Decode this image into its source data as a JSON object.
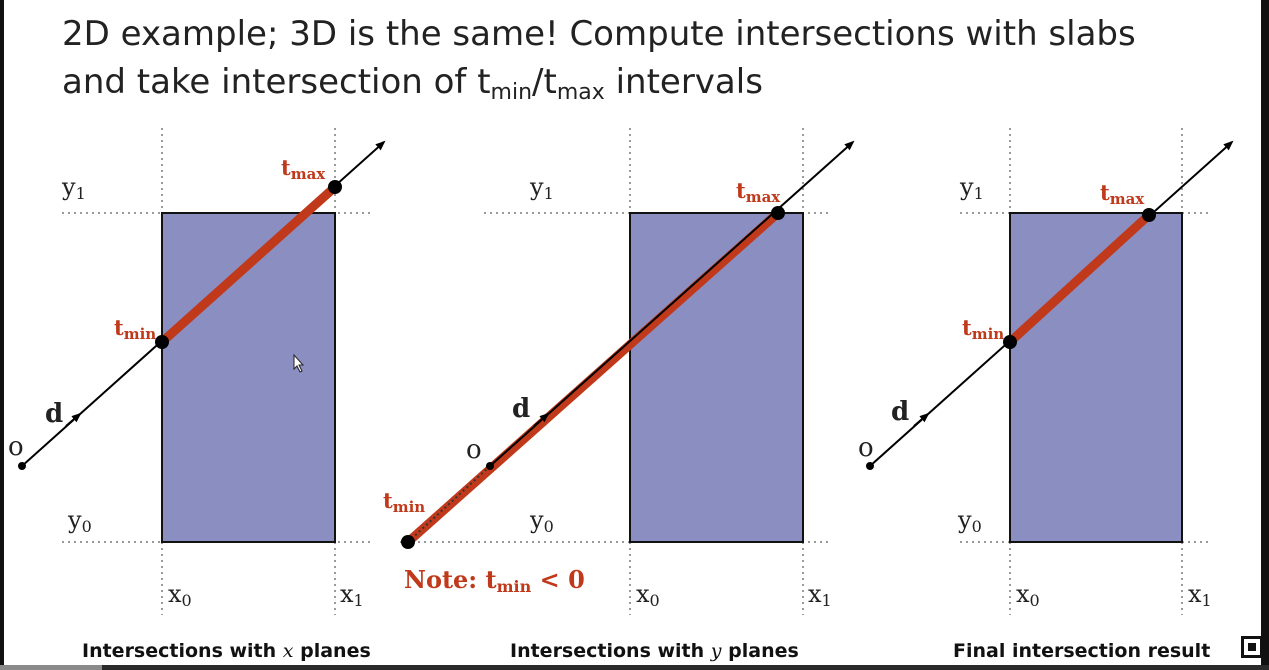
{
  "title": {
    "line1": "2D example; 3D is the same!  Compute intersections with slabs",
    "line2_before": "and take intersection of t",
    "sub_min": "min",
    "slash": "/t",
    "sub_max": "max",
    "line2_after": " intervals"
  },
  "labels": {
    "o": "o",
    "d": "d",
    "x0": "x",
    "x1": "x",
    "y0": "y",
    "y1": "y",
    "sub0": "0",
    "sub1": "1",
    "t": "t",
    "min": "min",
    "max": "max"
  },
  "note": {
    "prefix": "Note:  t",
    "sub": "min",
    "suffix": " < 0"
  },
  "captions": {
    "panel1_before": "Intersections with ",
    "panel1_var": "x",
    "panel1_after": " planes",
    "panel2_before": "Intersections with ",
    "panel2_var": "y",
    "panel2_after": " planes",
    "panel3": "Final intersection result"
  },
  "colors": {
    "box_fill": "#8b8ec0",
    "highlight": "#c0391b",
    "ray": "#000000",
    "dotted": "#9a9a9a"
  },
  "player": {
    "progress": 0.08
  }
}
